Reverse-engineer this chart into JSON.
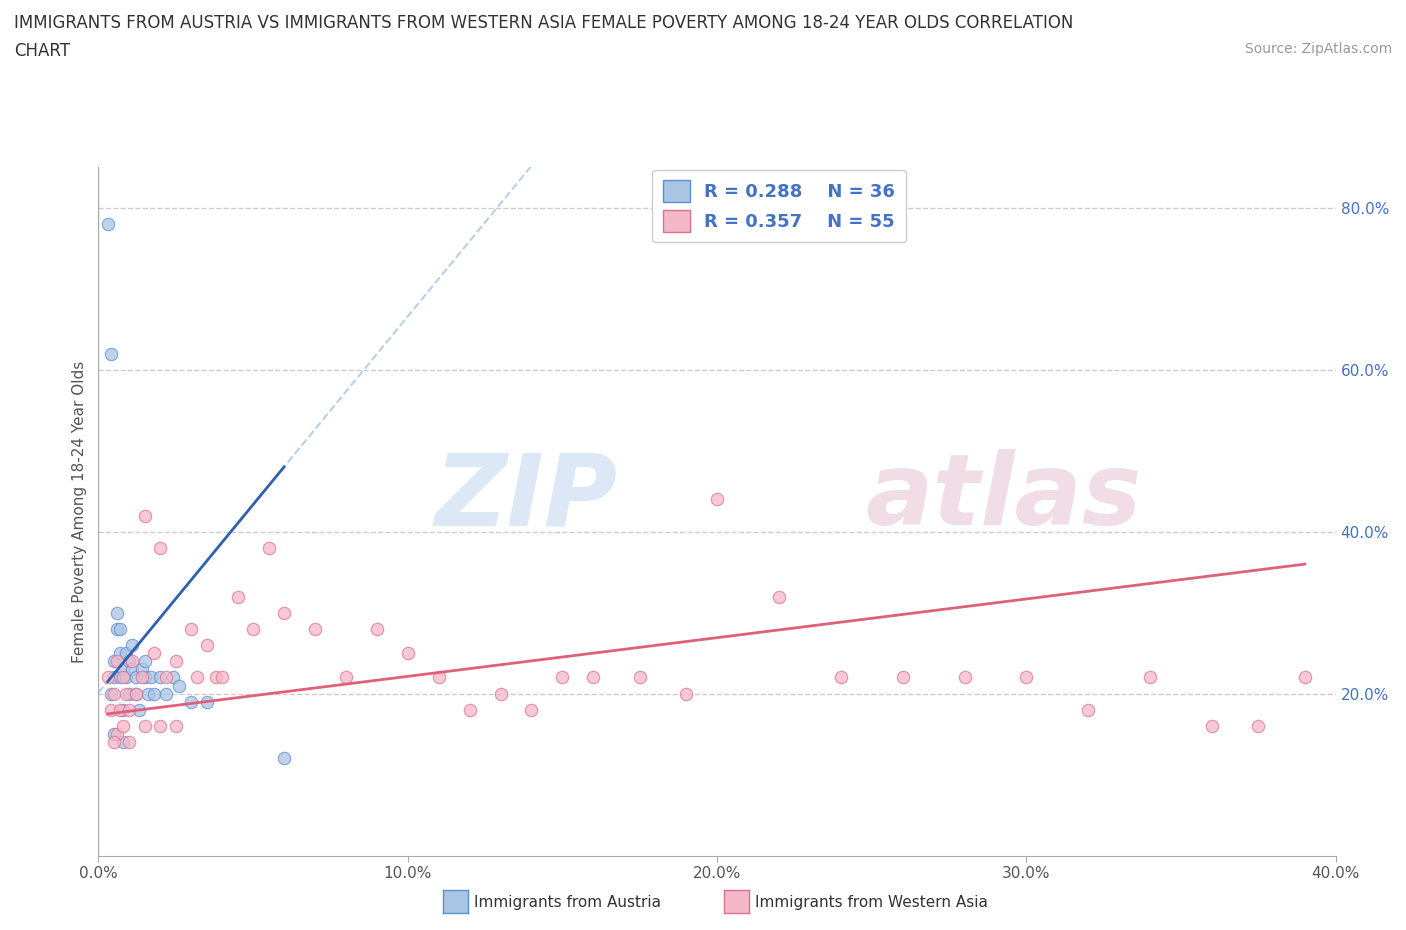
{
  "title_line1": "IMMIGRANTS FROM AUSTRIA VS IMMIGRANTS FROM WESTERN ASIA FEMALE POVERTY AMONG 18-24 YEAR OLDS CORRELATION",
  "title_line2": "CHART",
  "source_text": "Source: ZipAtlas.com",
  "ylabel": "Female Poverty Among 18-24 Year Olds",
  "xlim": [
    0.0,
    0.4
  ],
  "ylim": [
    0.0,
    0.85
  ],
  "xtick_labels": [
    "0.0%",
    "10.0%",
    "20.0%",
    "30.0%",
    "40.0%"
  ],
  "xtick_vals": [
    0.0,
    0.1,
    0.2,
    0.3,
    0.4
  ],
  "ytick_vals": [
    0.2,
    0.4,
    0.6,
    0.8
  ],
  "ytick_labels_right": [
    "20.0%",
    "40.0%",
    "60.0%",
    "80.0%"
  ],
  "austria_color": "#aac4e4",
  "austria_edge_color": "#5b8fd4",
  "western_asia_color": "#f5b8c8",
  "western_asia_edge_color": "#e07090",
  "austria_trend_color": "#3060b0",
  "western_asia_trend_color": "#e0607a",
  "austria_dashed_color": "#8ab0d8",
  "austria_R": 0.288,
  "austria_N": 36,
  "western_asia_R": 0.357,
  "western_asia_N": 55,
  "legend_text_color": "#4472c4",
  "austria_scatter_x": [
    0.003,
    0.004,
    0.005,
    0.005,
    0.006,
    0.006,
    0.007,
    0.007,
    0.007,
    0.008,
    0.008,
    0.009,
    0.009,
    0.01,
    0.01,
    0.011,
    0.011,
    0.012,
    0.012,
    0.013,
    0.014,
    0.015,
    0.015,
    0.016,
    0.017,
    0.018,
    0.02,
    0.022,
    0.024,
    0.026,
    0.03,
    0.035,
    0.06,
    0.004,
    0.005,
    0.008
  ],
  "austria_scatter_y": [
    0.78,
    0.2,
    0.22,
    0.24,
    0.28,
    0.3,
    0.25,
    0.22,
    0.28,
    0.23,
    0.18,
    0.25,
    0.22,
    0.24,
    0.2,
    0.23,
    0.26,
    0.22,
    0.2,
    0.18,
    0.23,
    0.22,
    0.24,
    0.2,
    0.22,
    0.2,
    0.22,
    0.2,
    0.22,
    0.21,
    0.19,
    0.19,
    0.12,
    0.62,
    0.15,
    0.14
  ],
  "western_asia_scatter_x": [
    0.003,
    0.004,
    0.005,
    0.006,
    0.006,
    0.007,
    0.008,
    0.009,
    0.01,
    0.011,
    0.012,
    0.014,
    0.015,
    0.018,
    0.02,
    0.022,
    0.025,
    0.03,
    0.032,
    0.035,
    0.038,
    0.04,
    0.045,
    0.05,
    0.055,
    0.06,
    0.07,
    0.08,
    0.09,
    0.1,
    0.11,
    0.12,
    0.13,
    0.14,
    0.15,
    0.16,
    0.175,
    0.19,
    0.2,
    0.22,
    0.24,
    0.26,
    0.28,
    0.3,
    0.32,
    0.34,
    0.36,
    0.375,
    0.39,
    0.005,
    0.008,
    0.01,
    0.015,
    0.02,
    0.025
  ],
  "western_asia_scatter_y": [
    0.22,
    0.18,
    0.2,
    0.24,
    0.15,
    0.18,
    0.22,
    0.2,
    0.18,
    0.24,
    0.2,
    0.22,
    0.42,
    0.25,
    0.38,
    0.22,
    0.24,
    0.28,
    0.22,
    0.26,
    0.22,
    0.22,
    0.32,
    0.28,
    0.38,
    0.3,
    0.28,
    0.22,
    0.28,
    0.25,
    0.22,
    0.18,
    0.2,
    0.18,
    0.22,
    0.22,
    0.22,
    0.2,
    0.44,
    0.32,
    0.22,
    0.22,
    0.22,
    0.22,
    0.18,
    0.22,
    0.16,
    0.16,
    0.22,
    0.14,
    0.16,
    0.14,
    0.16,
    0.16,
    0.16
  ],
  "austria_trend_x": [
    0.003,
    0.06
  ],
  "austria_trend_y": [
    0.215,
    0.48
  ],
  "western_asia_trend_x": [
    0.003,
    0.39
  ],
  "western_asia_trend_y": [
    0.175,
    0.36
  ]
}
